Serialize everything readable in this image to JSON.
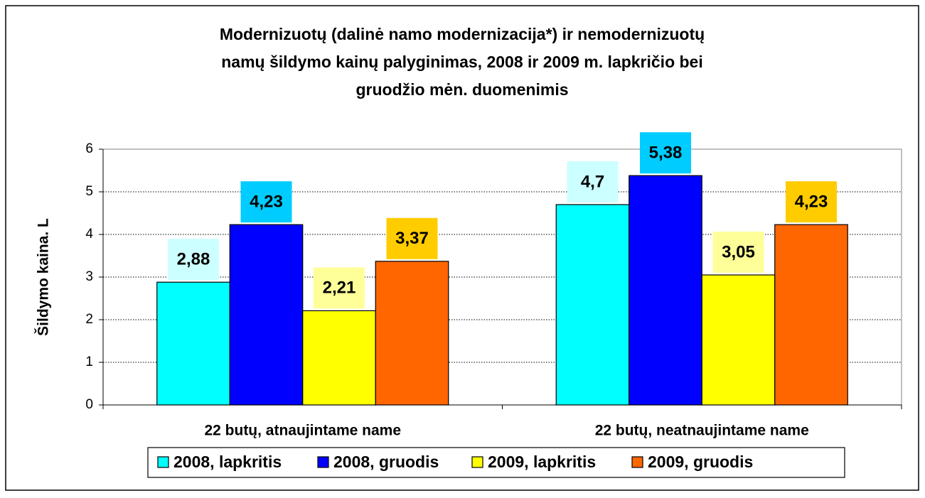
{
  "chart_data": {
    "type": "bar",
    "title": [
      "Modernizuotų (dalinė namo modernizacija*) ir nemodernizuotų",
      "namų šildymo kainų palyginimas, 2008 ir 2009 m. lapkričio bei",
      "gruodžio mėn. duomenimis"
    ],
    "ylabel": "Šildymo kaina. L",
    "categories": [
      "22 butų, atnaujintame name",
      "22 butų, neatnaujintame name"
    ],
    "series": [
      {
        "name": "2008, lapkritis",
        "color": "#00ffff",
        "label_color": "#ccffff",
        "values": [
          2.88,
          4.7
        ],
        "value_labels": [
          "2,88",
          "4,7"
        ]
      },
      {
        "name": "2008, gruodis",
        "color": "#0000ff",
        "label_color": "#00ccff",
        "values": [
          4.23,
          5.38
        ],
        "value_labels": [
          "4,23",
          "5,38"
        ]
      },
      {
        "name": "2009, lapkritis",
        "color": "#ffff00",
        "label_color": "#ffff99",
        "values": [
          2.21,
          3.05
        ],
        "value_labels": [
          "2,21",
          "3,05"
        ]
      },
      {
        "name": "2009, gruodis",
        "color": "#ff6600",
        "label_color": "#ffcc00",
        "values": [
          3.37,
          4.23
        ],
        "value_labels": [
          "3,37",
          "4,23"
        ]
      }
    ],
    "ylim": [
      0,
      6
    ],
    "yticks": [
      0,
      1,
      2,
      3,
      4,
      5,
      6
    ],
    "grid": true,
    "legend": "bottom"
  }
}
